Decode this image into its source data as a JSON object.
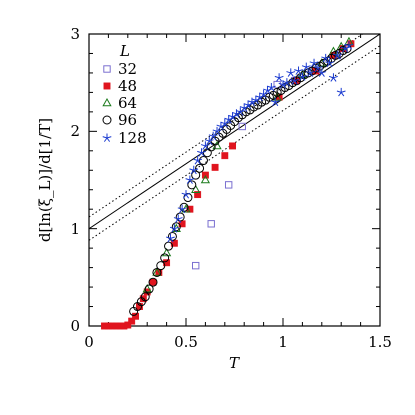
{
  "chart_data": {
    "type": "scatter",
    "xlabel": "T",
    "ylabel": "d[ln(ξ_L)]/d[1/T]",
    "xlim": [
      0,
      1.5
    ],
    "ylim": [
      0,
      3
    ],
    "xticks": [
      "0",
      "0.5",
      "1",
      "1.5"
    ],
    "yticks": [
      "0",
      "1",
      "2",
      "3"
    ],
    "legend_title": "L",
    "legend_position": "top-left",
    "grid": false,
    "lines": [
      {
        "style": "solid",
        "x": [
          0,
          1.5
        ],
        "y": [
          1.0,
          3.0
        ]
      },
      {
        "style": "dotted",
        "x": [
          0,
          1.5
        ],
        "y": [
          1.12,
          3.12
        ]
      },
      {
        "style": "dotted",
        "x": [
          0,
          1.5
        ],
        "y": [
          0.88,
          2.88
        ]
      }
    ],
    "series": [
      {
        "name": "32",
        "marker": "open-square",
        "color": "#7a6fd0",
        "x": [
          0.55,
          0.63,
          0.72,
          0.79,
          0.97,
          1.06,
          1.15,
          1.28
        ],
        "y": [
          0.62,
          1.05,
          1.45,
          2.05,
          2.48,
          2.52,
          2.62,
          2.78
        ]
      },
      {
        "name": "48",
        "marker": "filled-square",
        "color": "#e0141e",
        "x": [
          0.08,
          0.1,
          0.12,
          0.14,
          0.16,
          0.18,
          0.2,
          0.22,
          0.24,
          0.26,
          0.28,
          0.3,
          0.33,
          0.36,
          0.4,
          0.44,
          0.48,
          0.52,
          0.56,
          0.6,
          0.65,
          0.7,
          0.74,
          0.98,
          1.07,
          1.17,
          1.26,
          1.31,
          1.35
        ],
        "y": [
          0.0,
          0.0,
          0.0,
          0.0,
          0.0,
          0.0,
          0.01,
          0.05,
          0.1,
          0.2,
          0.28,
          0.35,
          0.45,
          0.55,
          0.65,
          0.85,
          1.05,
          1.2,
          1.35,
          1.55,
          1.63,
          1.75,
          1.85,
          2.35,
          2.52,
          2.62,
          2.78,
          2.85,
          2.9
        ]
      },
      {
        "name": "64",
        "marker": "open-triangle",
        "color": "#1a7a1a",
        "x": [
          0.3,
          0.35,
          0.4,
          0.45,
          0.5,
          0.55,
          0.6,
          0.66,
          0.97,
          1.1,
          1.2,
          1.26,
          1.3,
          1.34
        ],
        "y": [
          0.38,
          0.55,
          0.75,
          1.0,
          1.2,
          1.4,
          1.5,
          1.85,
          2.35,
          2.58,
          2.7,
          2.82,
          2.87,
          2.92
        ]
      },
      {
        "name": "96",
        "marker": "open-circle",
        "color": "#000000",
        "x": [
          0.23,
          0.25,
          0.27,
          0.29,
          0.31,
          0.33,
          0.35,
          0.37,
          0.39,
          0.41,
          0.43,
          0.45,
          0.47,
          0.49,
          0.51,
          0.53,
          0.55,
          0.57,
          0.59,
          0.61,
          0.63,
          0.65,
          0.67,
          0.69,
          0.71,
          0.73,
          0.75,
          0.77,
          0.79,
          0.81,
          0.83,
          0.85,
          0.87,
          0.89,
          0.91,
          0.93,
          0.95,
          0.97,
          0.99,
          1.01,
          1.03,
          1.05,
          1.07,
          1.09,
          1.11,
          1.13,
          1.15,
          1.17,
          1.19,
          1.21,
          1.23,
          1.25,
          1.27,
          1.29,
          1.31,
          1.33
        ],
        "y": [
          0.15,
          0.2,
          0.25,
          0.3,
          0.38,
          0.45,
          0.55,
          0.62,
          0.7,
          0.82,
          0.92,
          1.02,
          1.12,
          1.22,
          1.32,
          1.45,
          1.55,
          1.62,
          1.7,
          1.78,
          1.84,
          1.9,
          1.94,
          1.98,
          2.02,
          2.06,
          2.1,
          2.14,
          2.17,
          2.2,
          2.22,
          2.25,
          2.27,
          2.3,
          2.32,
          2.35,
          2.37,
          2.4,
          2.42,
          2.45,
          2.47,
          2.5,
          2.52,
          2.55,
          2.58,
          2.6,
          2.62,
          2.65,
          2.67,
          2.7,
          2.72,
          2.75,
          2.78,
          2.8,
          2.83,
          2.85
        ]
      },
      {
        "name": "128",
        "marker": "star",
        "color": "#1a3ad0",
        "x": [
          0.42,
          0.44,
          0.46,
          0.48,
          0.5,
          0.52,
          0.54,
          0.56,
          0.58,
          0.6,
          0.62,
          0.64,
          0.66,
          0.68,
          0.7,
          0.72,
          0.74,
          0.76,
          0.78,
          0.8,
          0.82,
          0.84,
          0.86,
          0.88,
          0.9,
          0.92,
          0.94,
          0.96,
          0.98,
          1.0,
          1.02,
          1.04,
          1.06,
          1.08,
          1.1,
          1.12,
          1.14,
          1.16,
          1.18,
          1.2,
          1.22,
          1.24,
          1.26,
          1.28,
          1.3,
          1.32,
          1.34
        ],
        "y": [
          0.9,
          1.0,
          1.1,
          1.2,
          1.35,
          1.5,
          1.6,
          1.7,
          1.78,
          1.85,
          1.9,
          1.95,
          2.0,
          2.05,
          2.08,
          2.12,
          2.15,
          2.18,
          2.2,
          2.24,
          2.27,
          2.3,
          2.32,
          2.35,
          2.38,
          2.42,
          2.45,
          2.3,
          2.55,
          2.48,
          2.5,
          2.6,
          2.52,
          2.62,
          2.56,
          2.66,
          2.6,
          2.7,
          2.65,
          2.6,
          2.75,
          2.7,
          2.55,
          2.78,
          2.4,
          2.85,
          2.88
        ]
      }
    ]
  }
}
